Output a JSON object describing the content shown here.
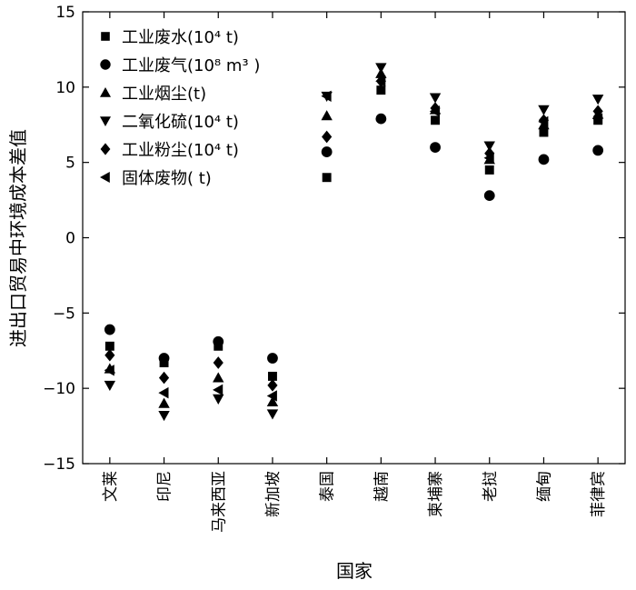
{
  "chart_data": {
    "type": "scatter",
    "xlabel": "国家",
    "ylabel": "进出口贸易中环境成本差值",
    "ylim": [
      -15,
      15
    ],
    "yticks": [
      15,
      10,
      5,
      0,
      -5,
      -10,
      -15
    ],
    "yticklabels": [
      "15",
      "10",
      "5",
      "0",
      "−5",
      "−10",
      "−15"
    ],
    "categories": [
      "文莱",
      "印尼",
      "马来西亚",
      "新加坡",
      "泰国",
      "越南",
      "柬埔寨",
      "老挝",
      "缅甸",
      "菲律宾"
    ],
    "grid": false,
    "legend_position": "top-left",
    "series": [
      {
        "name": "工业废水(10⁴ t)",
        "marker": "square",
        "values": [
          -7.2,
          -8.3,
          -7.2,
          -9.2,
          4.0,
          9.8,
          7.8,
          4.5,
          7.0,
          7.8
        ]
      },
      {
        "name": "工业废气(10⁸ m³ )",
        "marker": "circle",
        "values": [
          -6.1,
          -8.0,
          -6.9,
          -8.0,
          5.7,
          7.9,
          6.0,
          2.8,
          5.2,
          5.8
        ]
      },
      {
        "name": "工业烟尘(t)",
        "marker": "triangle-up",
        "values": [
          -8.7,
          -11.0,
          -9.3,
          -10.9,
          8.1,
          10.9,
          8.5,
          5.2,
          7.5,
          8.2
        ]
      },
      {
        "name": "二氧化硫(10⁴ t)",
        "marker": "triangle-down",
        "values": [
          -9.8,
          -11.8,
          -10.7,
          -11.7,
          9.4,
          11.3,
          9.3,
          6.1,
          8.5,
          9.2
        ]
      },
      {
        "name": "工业粉尘(10⁴ t)",
        "marker": "diamond",
        "values": [
          -7.8,
          -9.3,
          -8.3,
          -9.8,
          6.7,
          10.4,
          8.6,
          5.6,
          7.8,
          8.4
        ]
      },
      {
        "name": "固体废物( t)",
        "marker": "triangle-left",
        "values": [
          -8.8,
          -10.3,
          -10.1,
          -10.5,
          9.4,
          10.4,
          8.4,
          5.3,
          7.7,
          7.9
        ]
      }
    ]
  }
}
